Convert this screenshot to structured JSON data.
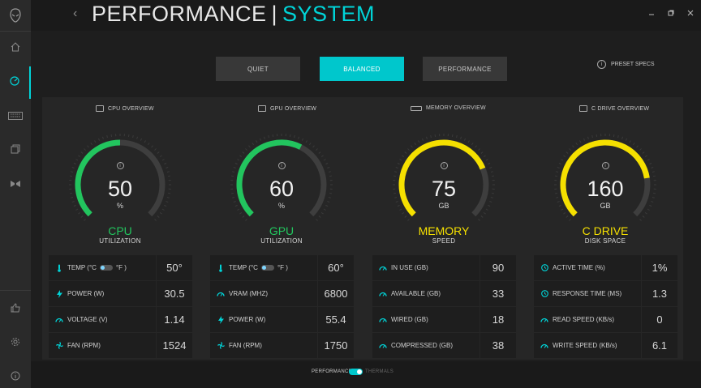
{
  "window": {
    "title_main": "PERFORMANCE",
    "title_separator": "|",
    "title_sub": "SYSTEM",
    "accent_color": "#00d4d8"
  },
  "sidebar": {
    "items": [
      {
        "icon": "home-icon"
      },
      {
        "icon": "speedometer-icon",
        "active": true
      },
      {
        "icon": "keyboard-icon"
      },
      {
        "icon": "copy-icon"
      },
      {
        "icon": "bowtie-icon"
      },
      {
        "icon": "thumbs-up-icon"
      },
      {
        "icon": "gear-icon"
      },
      {
        "icon": "info-icon"
      }
    ]
  },
  "modes": {
    "quiet": "QUIET",
    "balanced": "BALANCED",
    "performance": "PERFORMANCE",
    "selected": "BALANCED",
    "preset_specs": "PRESET SPECS"
  },
  "overviews": [
    {
      "heading": "CPU OVERVIEW",
      "value": "50",
      "unit": "%",
      "name": "CPU",
      "sub": "UTILIZATION",
      "color": "#22c55e",
      "fraction": 0.5,
      "stats": [
        {
          "icon": "thermometer-icon",
          "label": "TEMP (°C",
          "label_after": "°F )",
          "toggle": true,
          "value": "50°"
        },
        {
          "icon": "bolt-icon",
          "label": "POWER (W)",
          "value": "30.5"
        },
        {
          "icon": "gauge-icon",
          "label": "VOLTAGE (V)",
          "value": "1.14"
        },
        {
          "icon": "fan-icon",
          "label": "FAN (RPM)",
          "value": "1524"
        }
      ]
    },
    {
      "heading": "GPU OVERVIEW",
      "value": "60",
      "unit": "%",
      "name": "GPU",
      "sub": "UTILIZATION",
      "color": "#22c55e",
      "fraction": 0.6,
      "stats": [
        {
          "icon": "thermometer-icon",
          "label": "TEMP (°C",
          "label_after": "°F )",
          "toggle": true,
          "value": "60°"
        },
        {
          "icon": "gauge-icon",
          "label": "VRAM (MHZ)",
          "value": "6800"
        },
        {
          "icon": "bolt-icon",
          "label": "POWER (W)",
          "value": "55.4"
        },
        {
          "icon": "fan-icon",
          "label": "FAN (RPM)",
          "value": "1750"
        }
      ]
    },
    {
      "heading": "MEMORY OVERVIEW",
      "value": "75",
      "unit": "GB",
      "name": "MEMORY",
      "sub": "SPEED",
      "color": "#f5e000",
      "fraction": 0.75,
      "stats": [
        {
          "icon": "gauge-icon",
          "label": "IN USE (GB)",
          "value": "90"
        },
        {
          "icon": "gauge-icon",
          "label": "AVAILABLE (GB)",
          "value": "33"
        },
        {
          "icon": "gauge-icon",
          "label": "WIRED (GB)",
          "value": "18"
        },
        {
          "icon": "gauge-icon",
          "label": "COMPRESSED (GB)",
          "value": "38"
        }
      ]
    },
    {
      "heading": "C DRIVE OVERVIEW",
      "value": "160",
      "unit": "GB",
      "name": "C DRIVE",
      "sub": "DISK SPACE",
      "color": "#f5e000",
      "fraction": 0.8,
      "stats": [
        {
          "icon": "clock-icon",
          "label": "ACTIVE TIME (%)",
          "value": "1%"
        },
        {
          "icon": "clock-icon",
          "label": "RESPONSE TIME (MS)",
          "value": "1.3"
        },
        {
          "icon": "gauge-icon",
          "label": "READ SPEED (KB/s)",
          "value": "0"
        },
        {
          "icon": "gauge-icon",
          "label": "WRITE SPEED (KB/s)",
          "value": "6.1"
        }
      ]
    }
  ],
  "footer": {
    "left": "PERFORMANCE",
    "right": "THERMALS"
  }
}
